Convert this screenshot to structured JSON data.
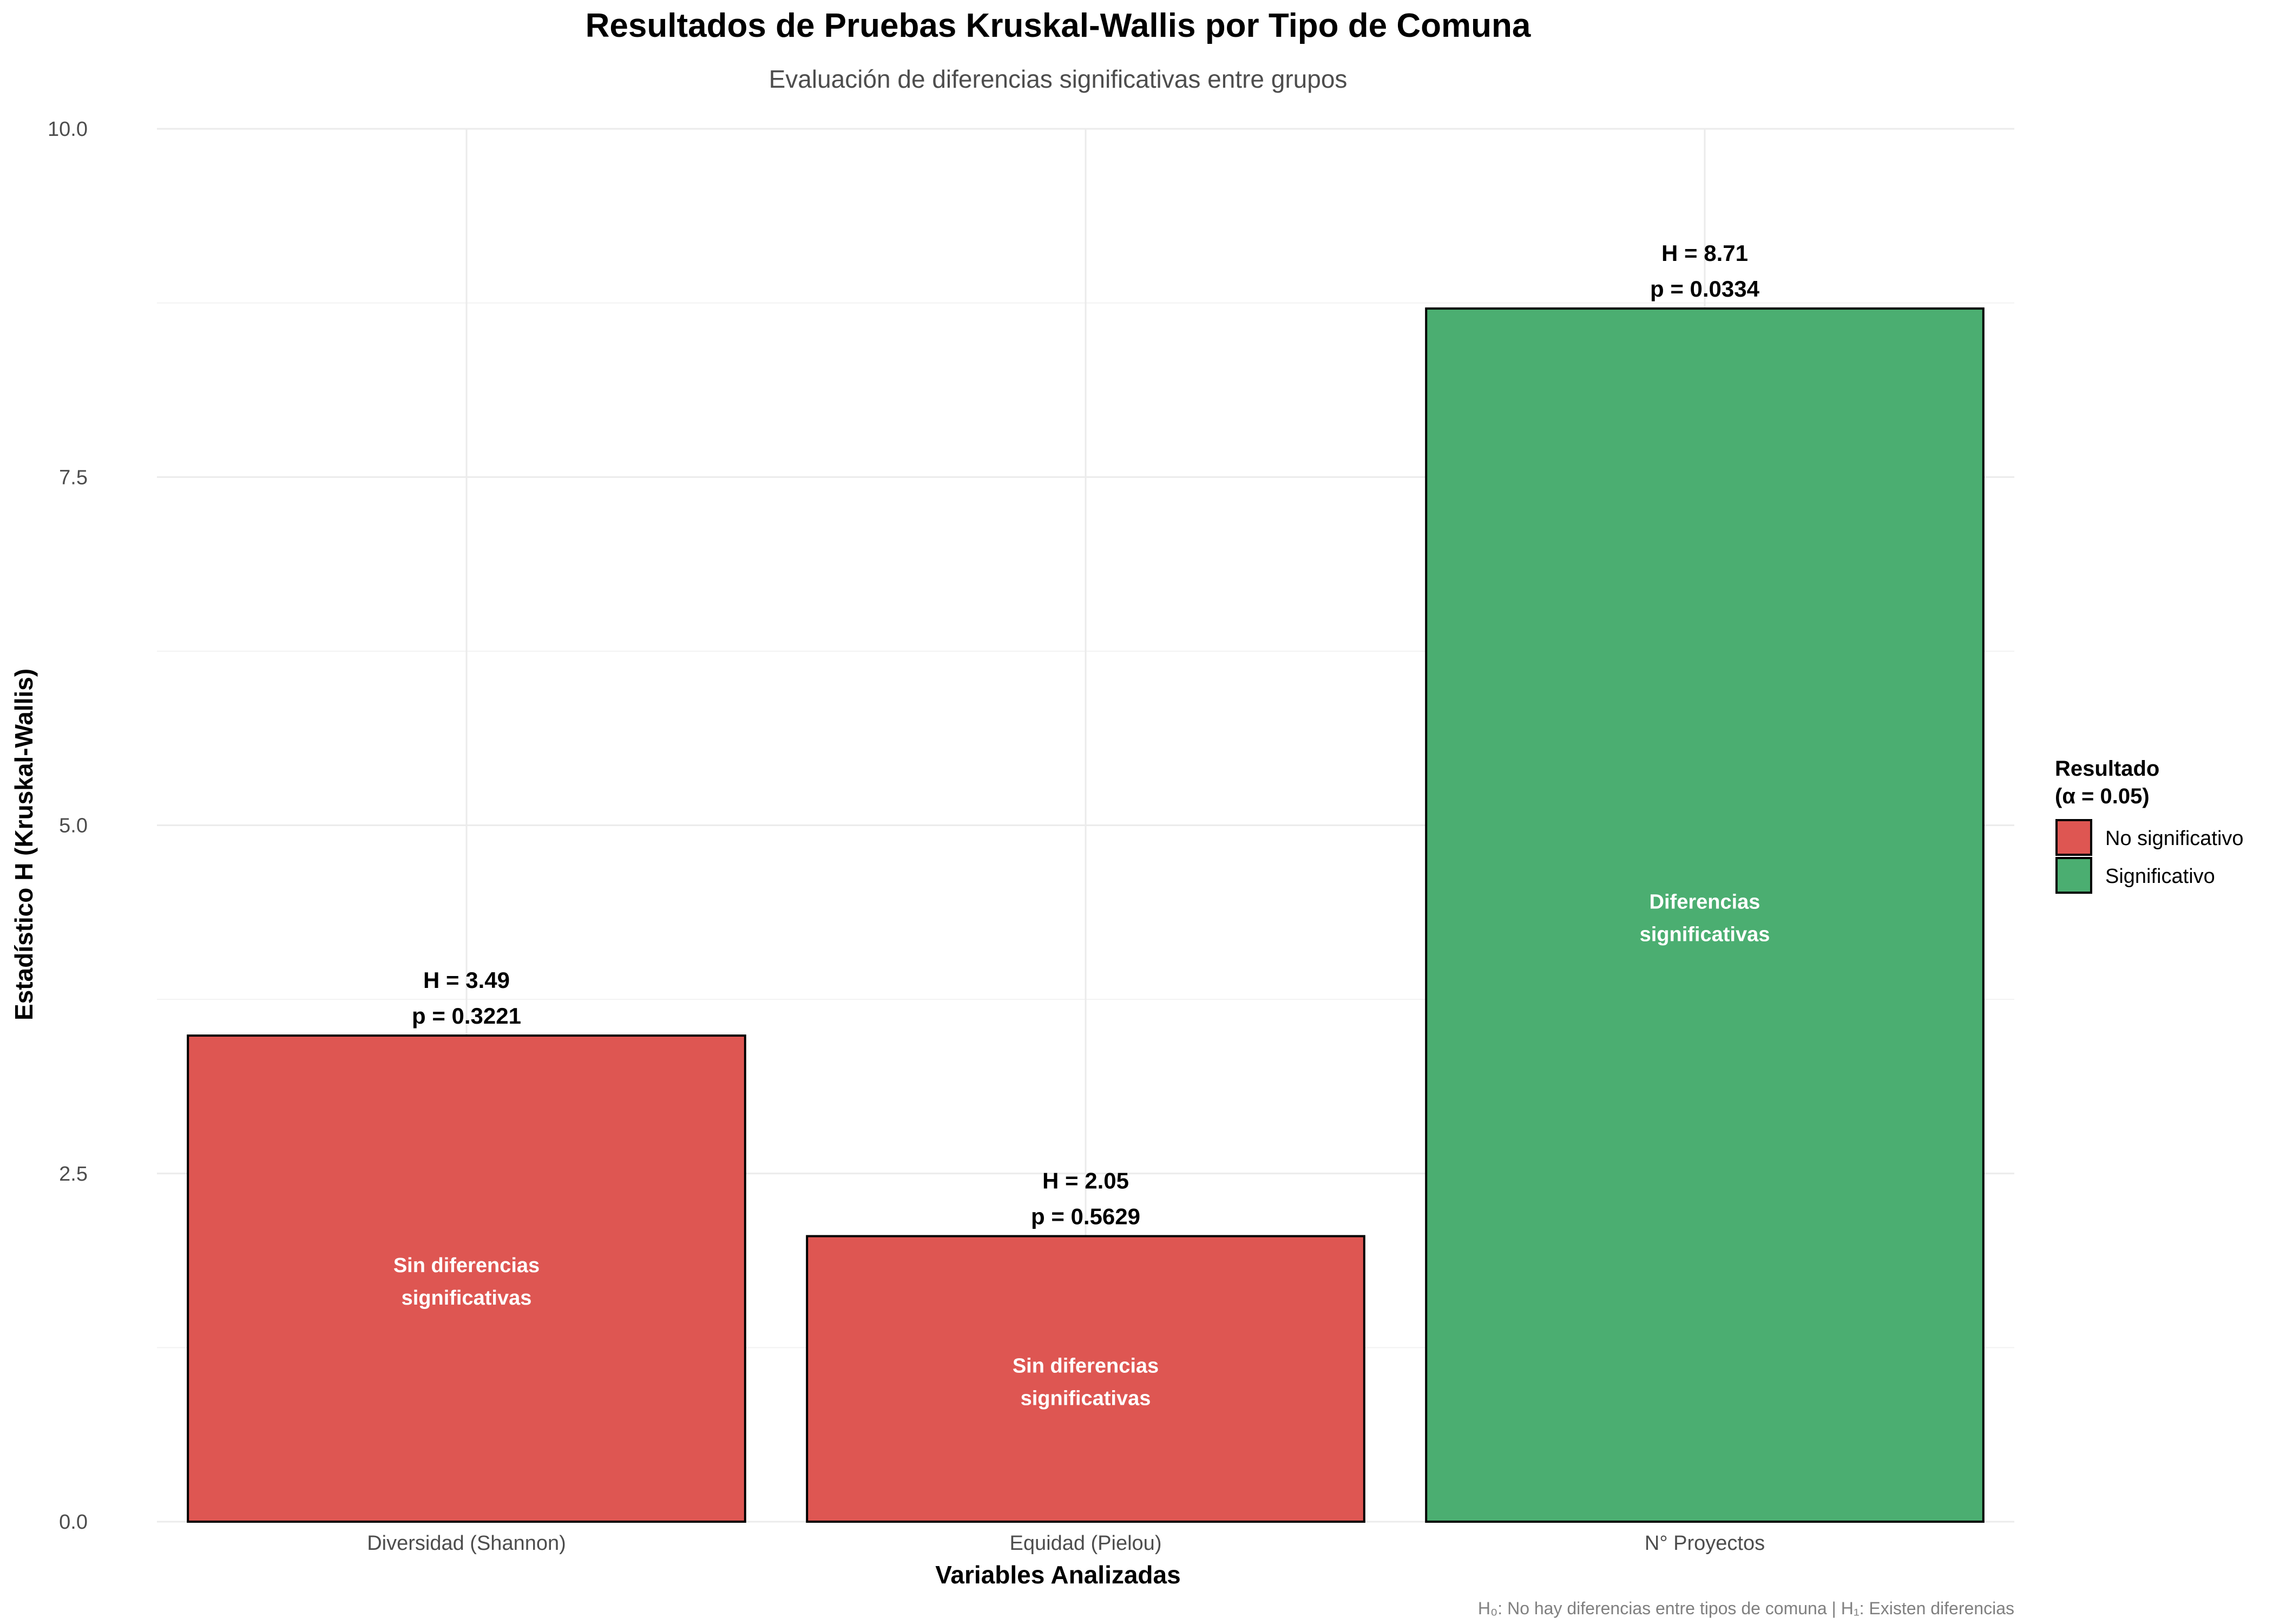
{
  "colors": {
    "no_significativo": "#DE5652",
    "significativo": "#4BAE71"
  },
  "chart_data": {
    "type": "bar",
    "title": "Resultados de Pruebas Kruskal-Wallis por Tipo de Comuna",
    "subtitle": "Evaluación de diferencias significativas entre grupos",
    "xlabel": "Variables Analizadas",
    "ylabel": "Estadístico H (Kruskal-Wallis)",
    "ylim": [
      0,
      10
    ],
    "yticks": [
      {
        "value": 0,
        "label": "0.0"
      },
      {
        "value": 2.5,
        "label": "2.5"
      },
      {
        "value": 5,
        "label": "5.0"
      },
      {
        "value": 7.5,
        "label": "7.5"
      },
      {
        "value": 10,
        "label": "10.0"
      }
    ],
    "grid": true,
    "categories": [
      "Diversidad (Shannon)",
      "Equidad (Pielou)",
      "N° Proyectos"
    ],
    "values": [
      3.49,
      2.05,
      8.71
    ],
    "bars": [
      {
        "category": "Diversidad (Shannon)",
        "h": 3.49,
        "h_label": "H = 3.49",
        "p_label": "p = 0.3221",
        "result": "No significativo",
        "inner_line1": "Sin diferencias",
        "inner_line2": "significativas"
      },
      {
        "category": "Equidad (Pielou)",
        "h": 2.05,
        "h_label": "H = 2.05",
        "p_label": "p = 0.5629",
        "result": "No significativo",
        "inner_line1": "Sin diferencias",
        "inner_line2": "significativas"
      },
      {
        "category": "N° Proyectos",
        "h": 8.71,
        "h_label": "H = 8.71",
        "p_label": "p = 0.0334",
        "result": "Significativo",
        "inner_line1": "Diferencias",
        "inner_line2": "significativas"
      }
    ],
    "legend": {
      "position": "right",
      "title_line1": "Resultado",
      "title_line2": "(α = 0.05)",
      "entries": [
        {
          "label": "No significativo",
          "color": "#DE5652"
        },
        {
          "label": "Significativo",
          "color": "#4BAE71"
        }
      ]
    },
    "caption": "H₀: No hay diferencias entre tipos de comuna | H₁: Existen diferencias"
  }
}
